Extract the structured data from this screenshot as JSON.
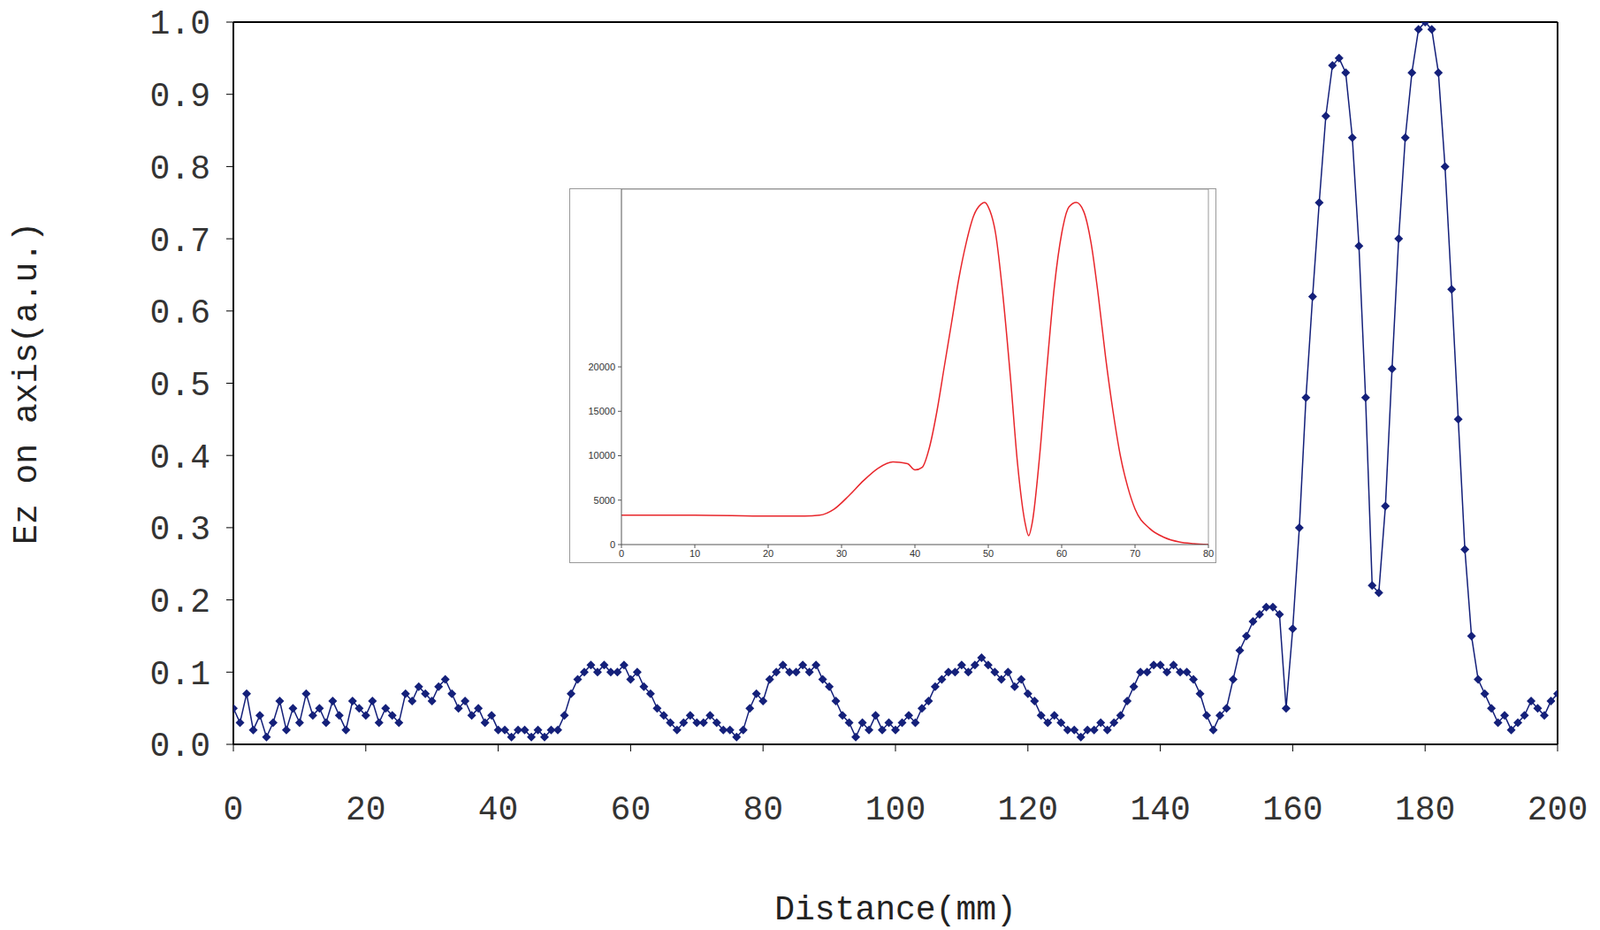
{
  "chart_data": [
    {
      "type": "line",
      "x_label": "Distance(mm)",
      "y_label": "Ez on axis(a.u.)",
      "color": "#14207a",
      "marker": "diamond",
      "xlim": [
        0,
        200
      ],
      "xticks": [
        0,
        20,
        40,
        60,
        80,
        100,
        120,
        140,
        160,
        180,
        200
      ],
      "ylim": [
        0,
        1
      ],
      "yticks": [
        {
          "value": 0,
          "label": "0.0"
        },
        0.1,
        0.2,
        0.3,
        0.4,
        0.5,
        0.6,
        0.7,
        0.8,
        0.9,
        {
          "value": 1,
          "label": "1.0"
        }
      ],
      "x": [
        0,
        1,
        2,
        3,
        4,
        5,
        6,
        7,
        8,
        9,
        10,
        11,
        12,
        13,
        14,
        15,
        16,
        17,
        18,
        19,
        20,
        21,
        22,
        23,
        24,
        25,
        26,
        27,
        28,
        29,
        30,
        31,
        32,
        33,
        34,
        35,
        36,
        37,
        38,
        39,
        40,
        41,
        42,
        43,
        44,
        45,
        46,
        47,
        48,
        49,
        50,
        51,
        52,
        53,
        54,
        55,
        56,
        57,
        58,
        59,
        60,
        61,
        62,
        63,
        64,
        65,
        66,
        67,
        68,
        69,
        70,
        71,
        72,
        73,
        74,
        75,
        76,
        77,
        78,
        79,
        80,
        81,
        82,
        83,
        84,
        85,
        86,
        87,
        88,
        89,
        90,
        91,
        92,
        93,
        94,
        95,
        96,
        97,
        98,
        99,
        100,
        101,
        102,
        103,
        104,
        105,
        106,
        107,
        108,
        109,
        110,
        111,
        112,
        113,
        114,
        115,
        116,
        117,
        118,
        119,
        120,
        121,
        122,
        123,
        124,
        125,
        126,
        127,
        128,
        129,
        130,
        131,
        132,
        133,
        134,
        135,
        136,
        137,
        138,
        139,
        140,
        141,
        142,
        143,
        144,
        145,
        146,
        147,
        148,
        149,
        150,
        151,
        152,
        153,
        154,
        155,
        156,
        157,
        158,
        159,
        160,
        161,
        162,
        163,
        164,
        165,
        166,
        167,
        168,
        169,
        170,
        171,
        172,
        173,
        174,
        175,
        176,
        177,
        178,
        179,
        180,
        181,
        182,
        183,
        184,
        185,
        186,
        187,
        188,
        189,
        190,
        191,
        192,
        193,
        194,
        195,
        196,
        197,
        198,
        199,
        200
      ],
      "values": [
        0.05,
        0.03,
        0.07,
        0.02,
        0.04,
        0.01,
        0.03,
        0.06,
        0.02,
        0.05,
        0.03,
        0.07,
        0.04,
        0.05,
        0.03,
        0.06,
        0.04,
        0.02,
        0.06,
        0.05,
        0.04,
        0.06,
        0.03,
        0.05,
        0.04,
        0.03,
        0.07,
        0.06,
        0.08,
        0.07,
        0.06,
        0.08,
        0.09,
        0.07,
        0.05,
        0.06,
        0.04,
        0.05,
        0.03,
        0.04,
        0.02,
        0.02,
        0.01,
        0.02,
        0.02,
        0.01,
        0.02,
        0.01,
        0.02,
        0.02,
        0.04,
        0.07,
        0.09,
        0.1,
        0.11,
        0.1,
        0.11,
        0.1,
        0.1,
        0.11,
        0.09,
        0.1,
        0.08,
        0.07,
        0.05,
        0.04,
        0.03,
        0.02,
        0.03,
        0.04,
        0.03,
        0.03,
        0.04,
        0.03,
        0.02,
        0.02,
        0.01,
        0.02,
        0.05,
        0.07,
        0.06,
        0.09,
        0.1,
        0.11,
        0.1,
        0.1,
        0.11,
        0.1,
        0.11,
        0.09,
        0.08,
        0.06,
        0.04,
        0.03,
        0.01,
        0.03,
        0.02,
        0.04,
        0.02,
        0.03,
        0.02,
        0.03,
        0.04,
        0.03,
        0.05,
        0.06,
        0.08,
        0.09,
        0.1,
        0.1,
        0.11,
        0.1,
        0.11,
        0.12,
        0.11,
        0.1,
        0.09,
        0.1,
        0.08,
        0.09,
        0.07,
        0.06,
        0.04,
        0.03,
        0.04,
        0.03,
        0.02,
        0.02,
        0.01,
        0.02,
        0.02,
        0.03,
        0.02,
        0.03,
        0.04,
        0.06,
        0.08,
        0.1,
        0.1,
        0.11,
        0.11,
        0.1,
        0.11,
        0.1,
        0.1,
        0.09,
        0.07,
        0.04,
        0.02,
        0.04,
        0.05,
        0.09,
        0.13,
        0.15,
        0.17,
        0.18,
        0.19,
        0.19,
        0.18,
        0.05,
        0.16,
        0.3,
        0.48,
        0.62,
        0.75,
        0.87,
        0.94,
        0.95,
        0.93,
        0.84,
        0.69,
        0.48,
        0.22,
        0.21,
        0.33,
        0.52,
        0.7,
        0.84,
        0.93,
        0.99,
        1.0,
        0.99,
        0.93,
        0.8,
        0.63,
        0.45,
        0.27,
        0.15,
        0.09,
        0.07,
        0.05,
        0.03,
        0.04,
        0.02,
        0.03,
        0.04,
        0.06,
        0.05,
        0.04,
        0.06,
        0.07
      ]
    },
    {
      "type": "line",
      "color": "#e8262b",
      "xlim": [
        0,
        80
      ],
      "xticks": [
        0,
        10,
        20,
        30,
        40,
        50,
        60,
        70,
        80
      ],
      "ylim": [
        0,
        40000
      ],
      "yticks": [
        0,
        5000,
        10000,
        15000,
        20000
      ],
      "x": [
        0,
        10,
        20,
        25,
        27,
        29,
        31,
        33,
        35,
        37,
        39,
        40,
        41,
        42,
        43,
        44,
        45,
        46,
        47,
        48,
        49,
        49.5,
        50,
        51,
        52,
        53,
        54,
        55,
        55.5,
        56,
        57,
        58,
        59,
        60,
        61,
        62,
        63,
        64,
        65,
        66,
        67,
        68,
        69,
        70,
        72,
        74,
        76,
        78,
        80
      ],
      "values": [
        3300,
        3300,
        3200,
        3200,
        3300,
        4000,
        5500,
        7200,
        8600,
        9300,
        9100,
        8400,
        8700,
        11000,
        15000,
        20000,
        25000,
        30000,
        34000,
        37000,
        38300,
        38500,
        38000,
        35000,
        28000,
        19000,
        9000,
        2500,
        1000,
        2500,
        10000,
        20000,
        29000,
        35000,
        38000,
        38500,
        37500,
        34000,
        28000,
        21000,
        15000,
        10000,
        6500,
        4000,
        1800,
        800,
        300,
        100,
        0
      ]
    }
  ]
}
